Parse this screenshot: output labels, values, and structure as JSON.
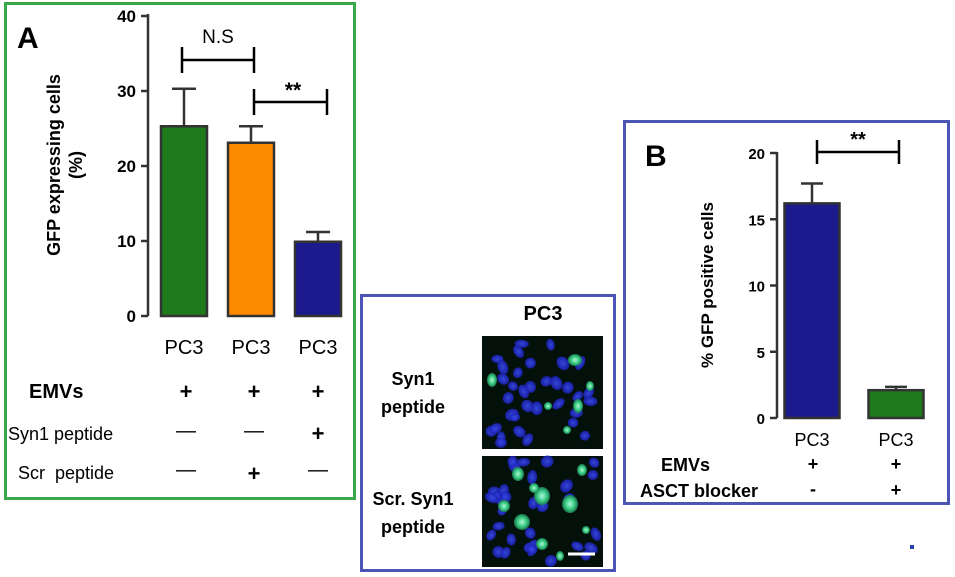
{
  "panel_a": {
    "letter": "A",
    "ns_label": "N.S",
    "sig_label": "**",
    "row_labels": [
      "EMVs",
      "Syn1 peptide",
      "Scr  peptide"
    ],
    "conditions": [
      [
        "+",
        "+",
        "+"
      ],
      [
        "—",
        "—",
        "+"
      ],
      [
        "—",
        "+",
        "—"
      ]
    ]
  },
  "panel_mid": {
    "title": "PC3",
    "rows": [
      {
        "label_line1": "Syn1",
        "label_line2": "peptide"
      },
      {
        "label_line1": "Scr. Syn1",
        "label_line2": "peptide"
      }
    ]
  },
  "panel_b": {
    "letter": "B",
    "sig_label": "**",
    "row_labels": [
      "EMVs",
      "ASCT blocker"
    ],
    "conditions": [
      [
        "+",
        "+"
      ],
      [
        "-",
        "+"
      ]
    ]
  },
  "colors": {
    "green": "#1f7a1c",
    "orange": "#ff8c00",
    "navy": "#1c1a8c",
    "panel_a_border": "#3aa748",
    "panel_border_blue": "#4c55b3"
  },
  "chart_data": [
    {
      "type": "bar",
      "title": "",
      "xlabel": "",
      "ylabel": "GFP expressing cells (%)",
      "ylabel_lines": [
        "GFP expressing cells",
        "(%)"
      ],
      "categories": [
        "PC3",
        "PC3",
        "PC3"
      ],
      "values": [
        25.3,
        23.1,
        9.9
      ],
      "errors": [
        5.0,
        2.2,
        1.3
      ],
      "bar_colors": [
        "#1f7a1c",
        "#ff8c00",
        "#1c1a8c"
      ],
      "ylim": [
        0,
        40
      ],
      "yticks": [
        0,
        10,
        20,
        30,
        40
      ],
      "grid": false
    },
    {
      "type": "bar",
      "title": "",
      "xlabel": "",
      "ylabel": "% GFP positive cells",
      "categories": [
        "PC3",
        "PC3"
      ],
      "values": [
        16.2,
        2.1
      ],
      "errors": [
        1.5,
        0.25
      ],
      "bar_colors": [
        "#1c1a8c",
        "#1f7a1c"
      ],
      "ylim": [
        0,
        20
      ],
      "yticks": [
        0,
        5,
        10,
        15,
        20
      ],
      "grid": false
    }
  ]
}
